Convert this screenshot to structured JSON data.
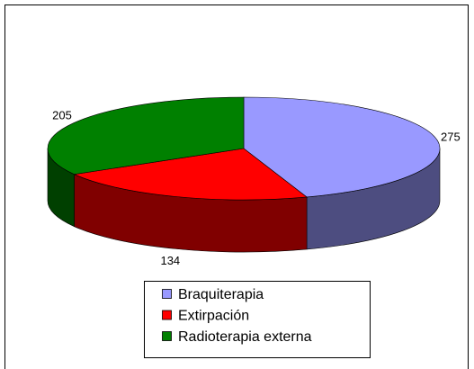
{
  "chart_data": {
    "type": "pie",
    "categories": [
      "Braquiterapia",
      "Extirpación",
      "Radioterapia externa"
    ],
    "values": [
      275,
      134,
      205
    ],
    "colors": [
      "#9999ff",
      "#ff0000",
      "#008000"
    ],
    "legend": "bottom"
  }
}
